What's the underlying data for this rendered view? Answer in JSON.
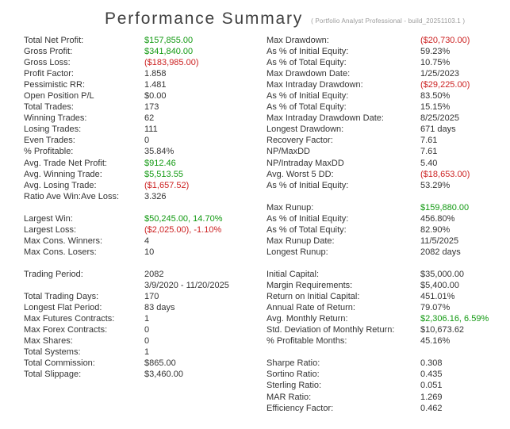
{
  "header": {
    "title": "Performance Summary",
    "subtitle": "( Portfolio Analyst Professional - build_20251103.1 )"
  },
  "colors": {
    "positive": "#119911",
    "negative": "#CC2222",
    "text": "#333333",
    "title": "#404040",
    "subtitle": "#999999"
  },
  "table": {
    "rows": [
      {
        "l": "Total Net Profit:",
        "lv": "$157,855.00",
        "lc": "pos",
        "r": "Max Drawdown:",
        "rv": "($20,730.00)",
        "rc": "neg"
      },
      {
        "l": "Gross Profit:",
        "lv": "$341,840.00",
        "lc": "pos",
        "r": "As % of Initial Equity:",
        "rv": "59.23%"
      },
      {
        "l": "Gross Loss:",
        "lv": "($183,985.00)",
        "lc": "neg",
        "r": "As % of Total Equity:",
        "rv": "10.75%"
      },
      {
        "l": "Profit Factor:",
        "lv": "1.858",
        "r": "Max Drawdown Date:",
        "rv": "1/25/2023"
      },
      {
        "l": "Pessimistic RR:",
        "lv": "1.481",
        "r": "Max Intraday Drawdown:",
        "rv": "($29,225.00)",
        "rc": "neg"
      },
      {
        "l": "Open Position P/L",
        "lv": "$0.00",
        "r": "As % of Initial Equity:",
        "rv": "83.50%"
      },
      {
        "l": "Total Trades:",
        "lv": "173",
        "r": "As % of Total Equity:",
        "rv": "15.15%"
      },
      {
        "l": "Winning Trades:",
        "lv": "62",
        "r": "Max Intraday Drawdown Date:",
        "rv": "8/25/2025"
      },
      {
        "l": "Losing Trades:",
        "lv": "111",
        "r": "Longest Drawdown:",
        "rv": "671 days"
      },
      {
        "l": "Even Trades:",
        "lv": "0",
        "r": "Recovery Factor:",
        "rv": "7.61"
      },
      {
        "l": "% Profitable:",
        "lv": "35.84%",
        "r": "NP/MaxDD",
        "rv": "7.61"
      },
      {
        "l": "Avg. Trade Net Profit:",
        "lv": "$912.46",
        "lc": "pos",
        "r": "NP/Intraday MaxDD",
        "rv": "5.40"
      },
      {
        "l": "Avg. Winning Trade:",
        "lv": "$5,513.55",
        "lc": "pos",
        "r": "Avg. Worst 5 DD:",
        "rv": "($18,653.00)",
        "rc": "neg"
      },
      {
        "l": "Avg. Losing Trade:",
        "lv": "($1,657.52)",
        "lc": "neg",
        "r": "As % of Initial Equity:",
        "rv": "53.29%"
      },
      {
        "l": "Ratio Ave Win:Ave Loss:",
        "lv": "3.326",
        "r": "",
        "rv": ""
      },
      {
        "l": "",
        "lv": "",
        "r": "Max Runup:",
        "rv": "$159,880.00",
        "rc": "pos"
      },
      {
        "l": "Largest Win:",
        "lv": "$50,245.00, 14.70%",
        "lc": "pos",
        "r": "As % of Initial Equity:",
        "rv": "456.80%"
      },
      {
        "l": "Largest Loss:",
        "lv": "($2,025.00), -1.10%",
        "lc": "neg",
        "r": "As % of Total Equity:",
        "rv": "82.90%"
      },
      {
        "l": "Max Cons. Winners:",
        "lv": "4",
        "r": "Max Runup Date:",
        "rv": "11/5/2025"
      },
      {
        "l": "Max Cons. Losers:",
        "lv": "10",
        "r": "Longest Runup:",
        "rv": "2082 days"
      },
      {
        "l": "",
        "lv": "",
        "r": "",
        "rv": ""
      },
      {
        "l": "Trading Period:",
        "lv": "2082",
        "r": "Initial Capital:",
        "rv": "$35,000.00"
      },
      {
        "l": "",
        "lv": "3/9/2020 - 11/20/2025",
        "r": "Margin Requirements:",
        "rv": "$5,400.00"
      },
      {
        "l": "Total Trading Days:",
        "lv": "170",
        "r": "Return on Initial Capital:",
        "rv": "451.01%"
      },
      {
        "l": "Longest Flat Period:",
        "lv": "83 days",
        "r": "Annual Rate of Return:",
        "rv": "79.07%"
      },
      {
        "l": "Max Futures Contracts:",
        "lv": "1",
        "r": "Avg. Monthly Return:",
        "rv": "$2,306.16, 6.59%",
        "rc": "pos"
      },
      {
        "l": "Max Forex Contracts:",
        "lv": "0",
        "r": "Std. Deviation of Monthly Return:",
        "rv": "$10,673.62"
      },
      {
        "l": "Max Shares:",
        "lv": "0",
        "r": "% Profitable Months:",
        "rv": "45.16%"
      },
      {
        "l": "Total Systems:",
        "lv": "1",
        "r": "",
        "rv": ""
      },
      {
        "l": "Total Commission:",
        "lv": "$865.00",
        "r": "Sharpe Ratio:",
        "rv": "0.308"
      },
      {
        "l": "Total Slippage:",
        "lv": "$3,460.00",
        "r": "Sortino Ratio:",
        "rv": "0.435"
      },
      {
        "l": "",
        "lv": "",
        "r": "Sterling Ratio:",
        "rv": "0.051"
      },
      {
        "l": "",
        "lv": "",
        "r": "MAR Ratio:",
        "rv": "1.269"
      },
      {
        "l": "",
        "lv": "",
        "r": "Efficiency Factor:",
        "rv": "0.462"
      }
    ]
  }
}
